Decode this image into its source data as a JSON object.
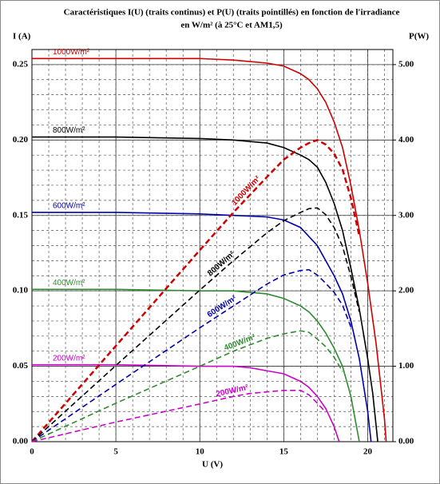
{
  "chart_data": {
    "type": "line",
    "title": [
      "Caractéristiques I(U) (traits continus) et P(U) (traits pointillés) en fonction de l'irradiance",
      "en W/m² (à 25°C et AM1,5)"
    ],
    "xlabel": "U (V)",
    "ylabel": "I (A)",
    "y2label": "P(W)",
    "xlim": [
      0,
      21.5
    ],
    "ylim": [
      0,
      0.26
    ],
    "y2lim": [
      0,
      5.2
    ],
    "xticks": [
      0,
      5,
      10,
      15,
      20
    ],
    "yticks": [
      {
        "value": 0,
        "label": "0.00"
      },
      {
        "value": 0.05,
        "label": "0.05"
      },
      {
        "value": 0.1,
        "label": "0.10"
      },
      {
        "value": 0.15,
        "label": "0.15"
      },
      {
        "value": 0.2,
        "label": "0.20"
      },
      {
        "value": 0.25,
        "label": "0.25"
      }
    ],
    "y2ticks": [
      {
        "value": 0,
        "label": "0.00"
      },
      {
        "value": 1,
        "label": "1.00"
      },
      {
        "value": 2,
        "label": "2.00"
      },
      {
        "value": 3,
        "label": "3.00"
      },
      {
        "value": 4,
        "label": "4.00"
      },
      {
        "value": 5,
        "label": "5.00"
      }
    ],
    "grid": true,
    "minor_grid": {
      "x": 1,
      "y": 0.01
    },
    "series": [
      {
        "name": "1000W/m²",
        "color": "#d00000",
        "axis": "y",
        "dash": false,
        "x": [
          0,
          5,
          10,
          12,
          14,
          15,
          16,
          16.5,
          17,
          17.5,
          18,
          18.5,
          19,
          19.5,
          20,
          20.5,
          21,
          21.1
        ],
        "values": [
          0.254,
          0.254,
          0.254,
          0.253,
          0.251,
          0.249,
          0.244,
          0.24,
          0.234,
          0.225,
          0.212,
          0.195,
          0.17,
          0.14,
          0.105,
          0.065,
          0.015,
          0
        ]
      },
      {
        "name": "800W/m²",
        "color": "#000000",
        "axis": "y",
        "dash": false,
        "x": [
          0,
          5,
          10,
          12,
          14,
          15,
          16,
          16.5,
          17,
          17.5,
          18,
          18.5,
          19,
          19.5,
          20,
          20.3,
          20.6
        ],
        "values": [
          0.202,
          0.202,
          0.201,
          0.2,
          0.198,
          0.195,
          0.19,
          0.187,
          0.182,
          0.172,
          0.158,
          0.14,
          0.115,
          0.088,
          0.055,
          0.032,
          0
        ]
      },
      {
        "name": "600W/m²",
        "color": "#0000b0",
        "axis": "y",
        "dash": false,
        "x": [
          0,
          5,
          10,
          12,
          14,
          15,
          16,
          17,
          17.5,
          18,
          18.5,
          19,
          19.5,
          20,
          20.2
        ],
        "values": [
          0.152,
          0.152,
          0.151,
          0.15,
          0.149,
          0.147,
          0.142,
          0.13,
          0.12,
          0.11,
          0.098,
          0.08,
          0.055,
          0.02,
          0
        ]
      },
      {
        "name": "400W/m²",
        "color": "#2e8b2e",
        "axis": "y",
        "dash": false,
        "x": [
          0,
          5,
          10,
          12,
          14,
          15,
          16,
          16.5,
          17,
          17.5,
          18,
          18.5,
          19,
          19.5
        ],
        "values": [
          0.101,
          0.101,
          0.1,
          0.1,
          0.098,
          0.095,
          0.09,
          0.086,
          0.08,
          0.072,
          0.062,
          0.05,
          0.03,
          0
        ]
      },
      {
        "name": "200W/m²",
        "color": "#cc00cc",
        "axis": "y",
        "dash": false,
        "x": [
          0,
          5,
          10,
          12,
          13,
          14,
          15,
          16,
          16.5,
          17,
          17.5,
          18,
          18.3
        ],
        "values": [
          0.051,
          0.051,
          0.05,
          0.05,
          0.049,
          0.047,
          0.045,
          0.04,
          0.036,
          0.03,
          0.022,
          0.01,
          0
        ]
      },
      {
        "name": "1000W/m²",
        "color": "#d00000",
        "axis": "y2",
        "dash": true,
        "x": [
          0,
          5,
          10,
          12,
          14,
          15,
          16,
          16.5,
          17,
          17.5,
          18,
          18.5,
          19,
          19.5
        ],
        "values": [
          0,
          1.27,
          2.54,
          3.04,
          3.51,
          3.74,
          3.9,
          3.96,
          4.0,
          3.94,
          3.82,
          3.61,
          3.23,
          2.73
        ]
      },
      {
        "name": "800W/m²",
        "color": "#000000",
        "axis": "y2",
        "dash": true,
        "x": [
          0,
          5,
          10,
          12,
          14,
          15,
          16,
          16.5,
          17,
          17.5,
          18,
          18.5,
          19,
          19.5
        ],
        "values": [
          0,
          1.01,
          2.01,
          2.4,
          2.77,
          2.93,
          3.04,
          3.09,
          3.1,
          3.01,
          2.84,
          2.59,
          2.19,
          1.72
        ]
      },
      {
        "name": "600W/m²",
        "color": "#0000b0",
        "axis": "y2",
        "dash": true,
        "x": [
          0,
          5,
          10,
          12,
          14,
          15,
          16,
          16.5,
          17,
          17.5,
          18,
          18.5,
          19
        ],
        "values": [
          0,
          0.76,
          1.51,
          1.8,
          2.09,
          2.21,
          2.27,
          2.28,
          2.21,
          2.1,
          1.98,
          1.81,
          1.52
        ]
      },
      {
        "name": "400W/m²",
        "color": "#2e8b2e",
        "axis": "y2",
        "dash": true,
        "x": [
          0,
          5,
          10,
          12,
          14,
          15,
          16,
          16.5,
          17,
          17.5,
          18,
          18.5
        ],
        "values": [
          0,
          0.51,
          1.0,
          1.2,
          1.37,
          1.43,
          1.47,
          1.45,
          1.36,
          1.26,
          1.12,
          0.93
        ]
      },
      {
        "name": "200W/m²",
        "color": "#cc00cc",
        "axis": "y2",
        "dash": true,
        "x": [
          0,
          5,
          10,
          12,
          13,
          14,
          15,
          16,
          16.5,
          17,
          17.5
        ],
        "values": [
          0,
          0.26,
          0.5,
          0.6,
          0.64,
          0.66,
          0.68,
          0.68,
          0.62,
          0.51,
          0.39
        ]
      }
    ]
  }
}
